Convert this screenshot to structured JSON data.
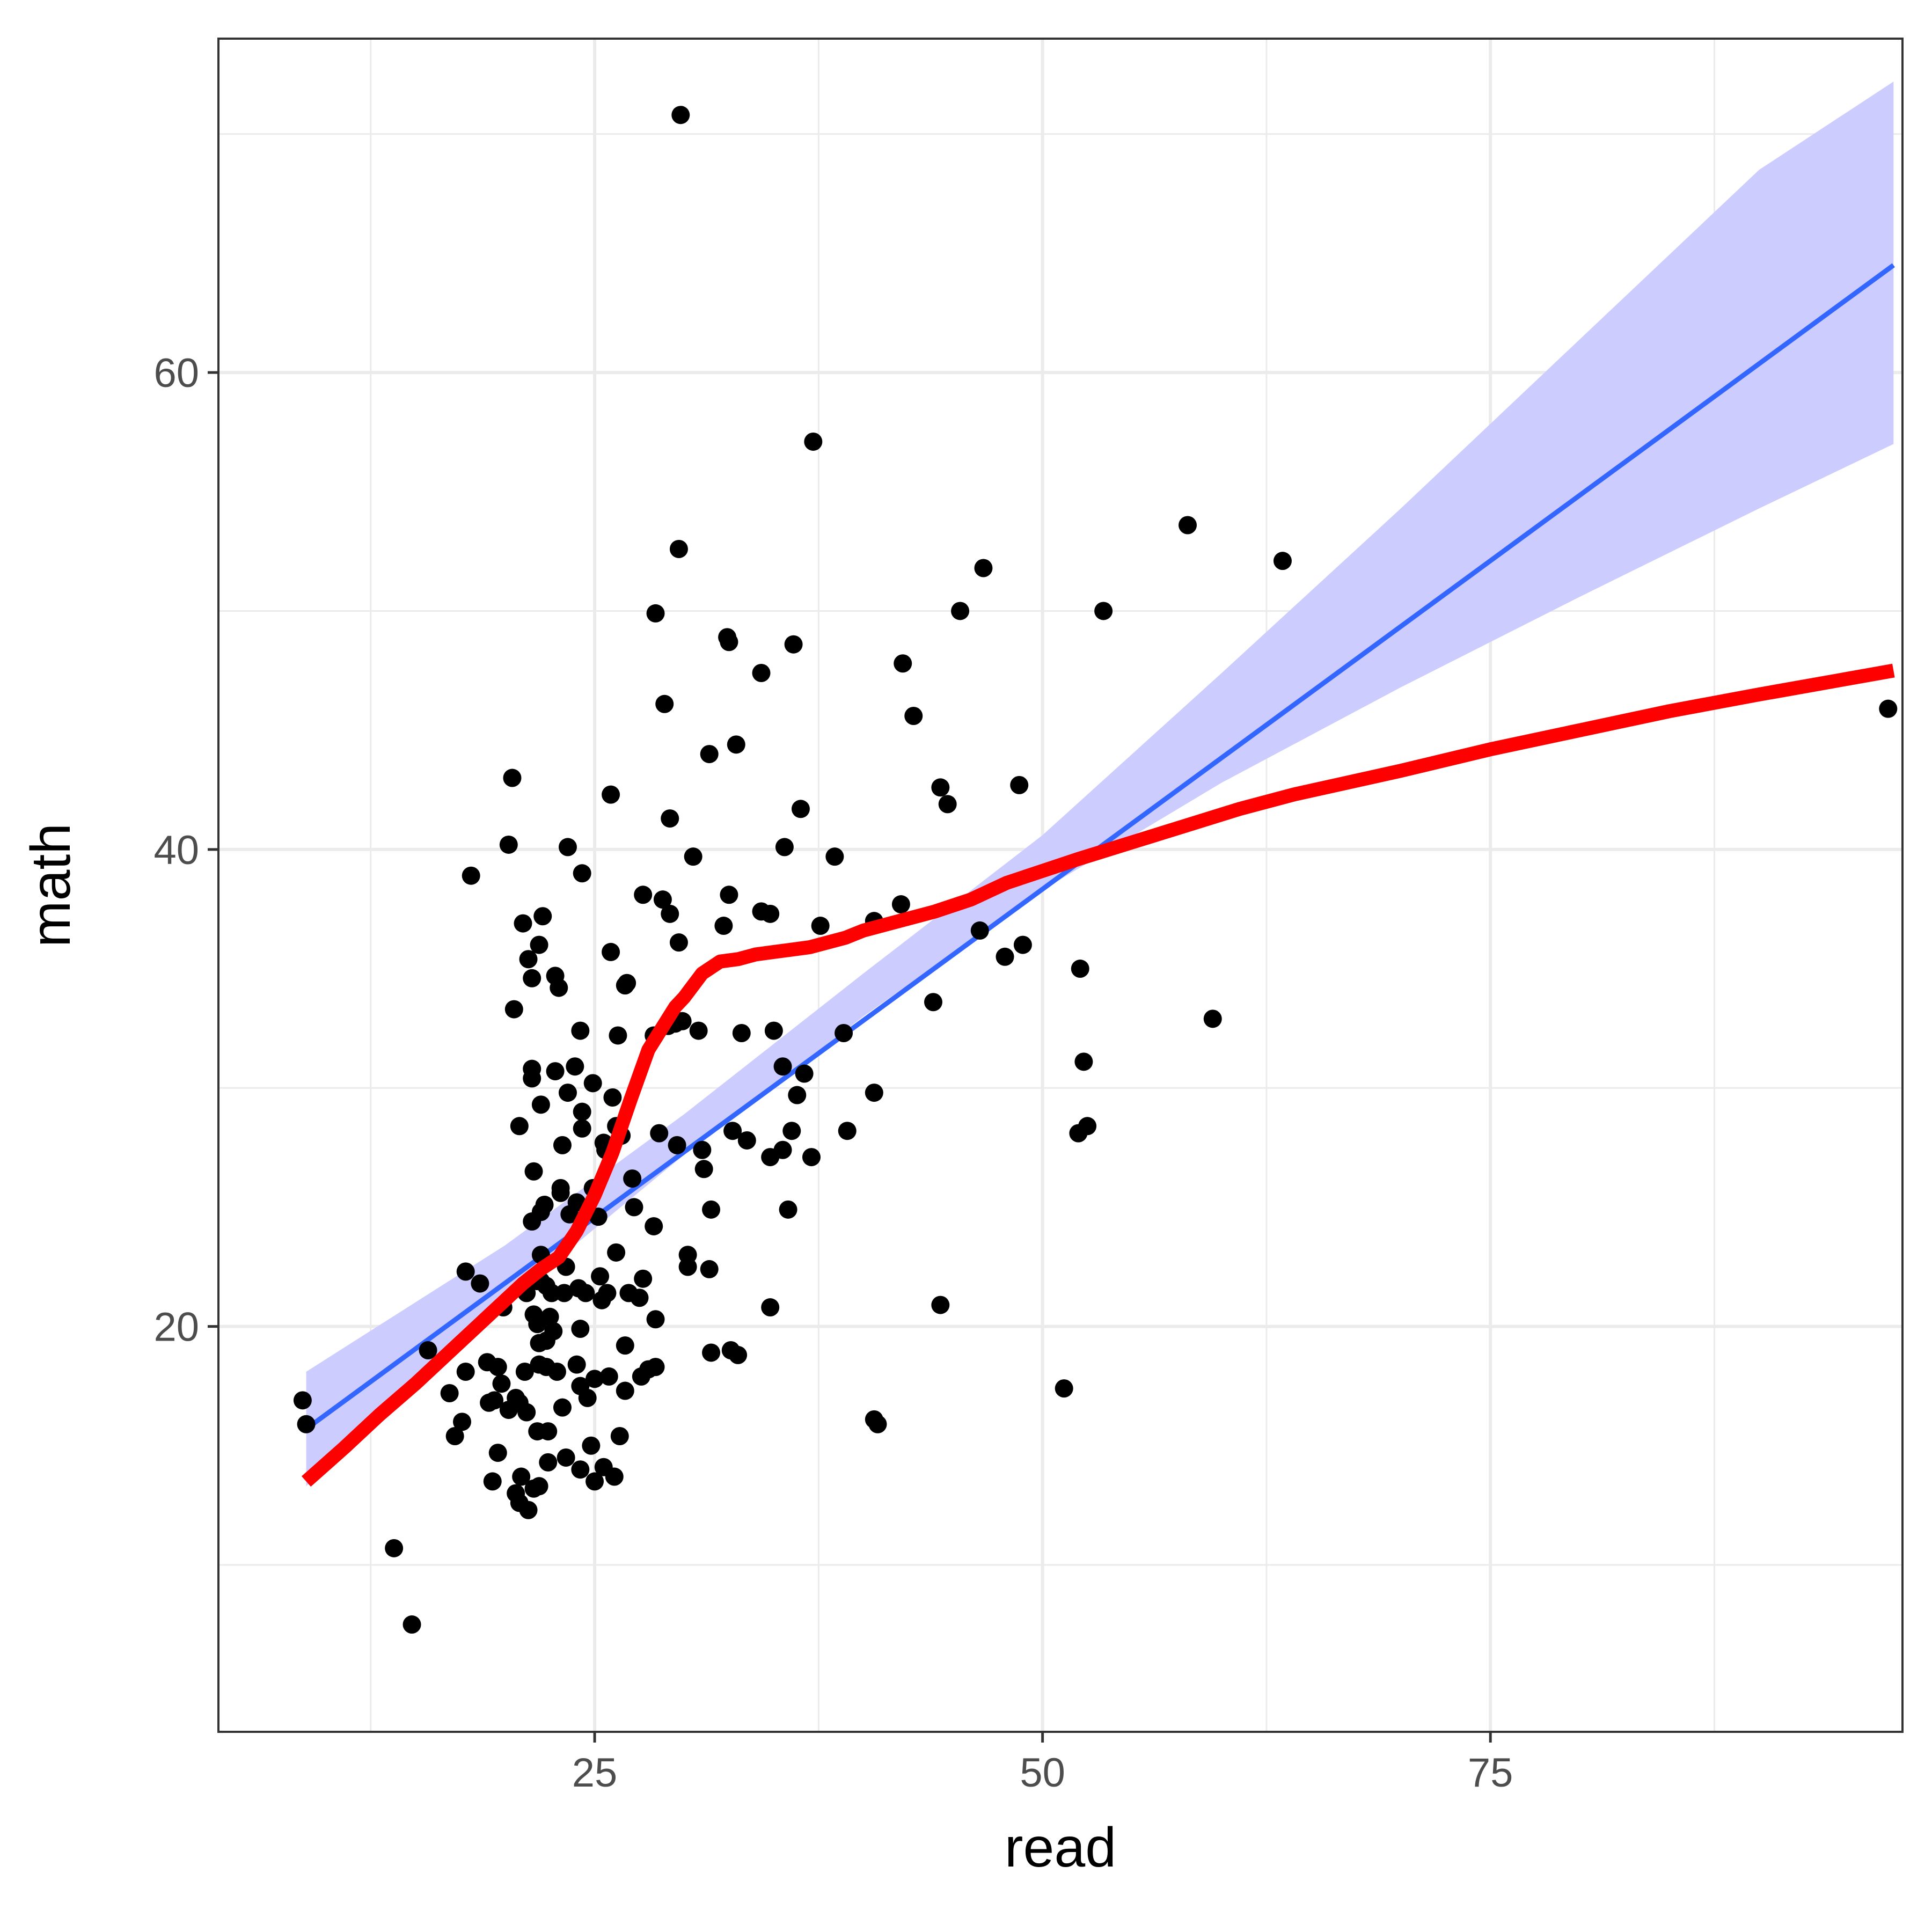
{
  "chart_data": {
    "type": "scatter",
    "title": "",
    "xlabel": "read",
    "ylabel": "math",
    "xlim": [
      4,
      98
    ],
    "ylim": [
      3,
      74
    ],
    "x_ticks": [
      25,
      50,
      75
    ],
    "x_tick_labels": [
      "25",
      "50",
      "75"
    ],
    "y_ticks": [
      20,
      40,
      60
    ],
    "y_tick_labels": [
      "20",
      "40",
      "60"
    ],
    "x_minor_ticks": [
      12.5,
      37.5,
      62.5,
      87.5
    ],
    "y_minor_ticks": [
      10,
      30,
      50,
      70
    ],
    "grid": true,
    "legend": "none",
    "colors": {
      "points": "#000000",
      "linear_fit": "#3366ff",
      "confidence_band": "#ccccff",
      "smooth_fit": "#ff0000",
      "grid": "#ebebeb",
      "panel_border": "#333333"
    },
    "points": [
      [
        8.7,
        16.9
      ],
      [
        8.9,
        15.9
      ],
      [
        13.8,
        10.7
      ],
      [
        14.8,
        7.5
      ],
      [
        15.7,
        19.0
      ],
      [
        16.9,
        17.2
      ],
      [
        17.2,
        15.4
      ],
      [
        17.6,
        16.0
      ],
      [
        17.8,
        18.1
      ],
      [
        17.8,
        22.3
      ],
      [
        18.1,
        38.9
      ],
      [
        18.6,
        21.8
      ],
      [
        19.0,
        18.5
      ],
      [
        19.1,
        16.8
      ],
      [
        19.3,
        13.5
      ],
      [
        19.4,
        16.9
      ],
      [
        19.6,
        14.7
      ],
      [
        19.6,
        18.3
      ],
      [
        19.8,
        17.6
      ],
      [
        19.9,
        20.8
      ],
      [
        20.2,
        40.2
      ],
      [
        20.2,
        16.5
      ],
      [
        20.4,
        43.0
      ],
      [
        20.5,
        33.3
      ],
      [
        20.6,
        17.0
      ],
      [
        20.6,
        13.0
      ],
      [
        20.8,
        28.4
      ],
      [
        20.8,
        16.8
      ],
      [
        20.8,
        12.6
      ],
      [
        20.9,
        13.7
      ],
      [
        21.0,
        36.9
      ],
      [
        21.1,
        18.1
      ],
      [
        21.2,
        21.4
      ],
      [
        21.2,
        16.4
      ],
      [
        21.3,
        12.3
      ],
      [
        21.3,
        35.4
      ],
      [
        21.5,
        34.6
      ],
      [
        21.5,
        30.8
      ],
      [
        21.5,
        30.4
      ],
      [
        21.5,
        24.4
      ],
      [
        21.6,
        26.5
      ],
      [
        21.6,
        20.5
      ],
      [
        21.6,
        13.2
      ],
      [
        21.8,
        21.9
      ],
      [
        21.8,
        20.1
      ],
      [
        21.8,
        15.6
      ],
      [
        21.9,
        36.0
      ],
      [
        21.9,
        19.3
      ],
      [
        21.9,
        18.4
      ],
      [
        21.9,
        13.3
      ],
      [
        22.0,
        29.3
      ],
      [
        22.0,
        24.8
      ],
      [
        22.0,
        23.0
      ],
      [
        22.0,
        21.9
      ],
      [
        22.1,
        37.2
      ],
      [
        22.2,
        25.1
      ],
      [
        22.3,
        21.7
      ],
      [
        22.3,
        19.4
      ],
      [
        22.3,
        18.3
      ],
      [
        22.4,
        15.6
      ],
      [
        22.4,
        14.3
      ],
      [
        22.5,
        20.4
      ],
      [
        22.6,
        21.4
      ],
      [
        22.7,
        19.8
      ],
      [
        22.8,
        34.7
      ],
      [
        22.8,
        30.7
      ],
      [
        22.9,
        18.1
      ],
      [
        23.0,
        34.2
      ],
      [
        23.1,
        25.8
      ],
      [
        23.1,
        25.6
      ],
      [
        23.2,
        27.6
      ],
      [
        23.2,
        16.6
      ],
      [
        23.3,
        21.4
      ],
      [
        23.4,
        22.5
      ],
      [
        23.4,
        14.5
      ],
      [
        23.5,
        29.8
      ],
      [
        23.5,
        40.1
      ],
      [
        23.6,
        24.7
      ],
      [
        23.9,
        30.9
      ],
      [
        24.0,
        25.2
      ],
      [
        24.0,
        18.4
      ],
      [
        24.1,
        21.6
      ],
      [
        24.2,
        32.4
      ],
      [
        24.2,
        19.9
      ],
      [
        24.2,
        17.5
      ],
      [
        24.2,
        14.0
      ],
      [
        24.3,
        39.0
      ],
      [
        24.3,
        29.0
      ],
      [
        24.3,
        28.3
      ],
      [
        24.5,
        21.4
      ],
      [
        24.6,
        17.0
      ],
      [
        24.8,
        15.0
      ],
      [
        24.9,
        30.2
      ],
      [
        24.9,
        25.8
      ],
      [
        25.0,
        17.8
      ],
      [
        25.0,
        13.5
      ],
      [
        25.2,
        24.6
      ],
      [
        25.3,
        22.1
      ],
      [
        25.4,
        21.1
      ],
      [
        25.5,
        14.1
      ],
      [
        25.5,
        27.7
      ],
      [
        25.6,
        27.4
      ],
      [
        25.7,
        21.4
      ],
      [
        25.8,
        17.9
      ],
      [
        25.9,
        35.7
      ],
      [
        25.9,
        42.3
      ],
      [
        26.0,
        29.6
      ],
      [
        26.1,
        13.7
      ],
      [
        26.2,
        28.4
      ],
      [
        26.2,
        23.1
      ],
      [
        26.3,
        32.2
      ],
      [
        26.4,
        15.4
      ],
      [
        26.5,
        28.0
      ],
      [
        26.7,
        19.2
      ],
      [
        26.7,
        17.3
      ],
      [
        26.7,
        34.3
      ],
      [
        26.8,
        34.4
      ],
      [
        26.9,
        21.4
      ],
      [
        27.1,
        26.2
      ],
      [
        27.2,
        25.0
      ],
      [
        27.5,
        21.2
      ],
      [
        27.6,
        17.9
      ],
      [
        27.7,
        22.0
      ],
      [
        27.7,
        38.1
      ],
      [
        28.0,
        18.2
      ],
      [
        28.3,
        24.2
      ],
      [
        28.4,
        20.3
      ],
      [
        28.4,
        18.3
      ],
      [
        28.3,
        32.2
      ],
      [
        28.4,
        49.9
      ],
      [
        28.6,
        28.1
      ],
      [
        28.8,
        37.9
      ],
      [
        28.9,
        46.1
      ],
      [
        29.1,
        32.6
      ],
      [
        29.2,
        37.3
      ],
      [
        29.2,
        41.3
      ],
      [
        29.5,
        32.7
      ],
      [
        29.6,
        27.6
      ],
      [
        29.7,
        36.1
      ],
      [
        29.7,
        52.6
      ],
      [
        29.8,
        70.8
      ],
      [
        29.9,
        32.8
      ],
      [
        30.2,
        22.5
      ],
      [
        30.2,
        23.0
      ],
      [
        30.5,
        39.7
      ],
      [
        30.8,
        32.4
      ],
      [
        31.0,
        27.4
      ],
      [
        31.1,
        26.6
      ],
      [
        31.4,
        44.0
      ],
      [
        31.4,
        22.4
      ],
      [
        31.5,
        24.9
      ],
      [
        31.5,
        18.9
      ],
      [
        32.2,
        36.8
      ],
      [
        32.4,
        48.9
      ],
      [
        32.5,
        38.1
      ],
      [
        32.5,
        48.7
      ],
      [
        32.6,
        19.0
      ],
      [
        32.7,
        28.2
      ],
      [
        32.9,
        44.4
      ],
      [
        33.0,
        18.8
      ],
      [
        33.2,
        32.3
      ],
      [
        33.5,
        27.8
      ],
      [
        34.3,
        37.4
      ],
      [
        34.3,
        47.4
      ],
      [
        34.8,
        37.3
      ],
      [
        34.8,
        27.1
      ],
      [
        34.8,
        20.8
      ],
      [
        35.0,
        32.4
      ],
      [
        35.5,
        30.9
      ],
      [
        35.5,
        27.4
      ],
      [
        35.6,
        40.1
      ],
      [
        35.8,
        24.9
      ],
      [
        36.0,
        28.2
      ],
      [
        36.1,
        48.6
      ],
      [
        36.3,
        29.7
      ],
      [
        36.5,
        41.7
      ],
      [
        36.7,
        30.6
      ],
      [
        37.1,
        27.1
      ],
      [
        37.2,
        57.1
      ],
      [
        37.6,
        36.8
      ],
      [
        38.4,
        39.7
      ],
      [
        38.9,
        32.3
      ],
      [
        39.1,
        28.2
      ],
      [
        40.6,
        37.0
      ],
      [
        40.6,
        29.8
      ],
      [
        40.6,
        16.1
      ],
      [
        40.8,
        15.9
      ],
      [
        42.1,
        37.7
      ],
      [
        42.2,
        47.8
      ],
      [
        42.8,
        45.6
      ],
      [
        43.9,
        33.6
      ],
      [
        44.3,
        42.6
      ],
      [
        44.3,
        20.9
      ],
      [
        44.7,
        41.9
      ],
      [
        45.4,
        50.0
      ],
      [
        46.5,
        36.6
      ],
      [
        46.7,
        51.8
      ],
      [
        47.9,
        35.5
      ],
      [
        48.7,
        42.7
      ],
      [
        48.9,
        36.0
      ],
      [
        51.2,
        17.4
      ],
      [
        52.0,
        28.1
      ],
      [
        52.1,
        35.0
      ],
      [
        52.3,
        31.1
      ],
      [
        52.5,
        28.4
      ],
      [
        53.4,
        50.0
      ],
      [
        58.1,
        53.6
      ],
      [
        59.5,
        32.9
      ],
      [
        63.4,
        52.1
      ],
      [
        97.2,
        45.9
      ]
    ],
    "linear_fit": {
      "x": [
        8.9,
        97.5
      ],
      "y": [
        15.7,
        64.5
      ]
    },
    "confidence_band": {
      "x": [
        8.9,
        20,
        30,
        40,
        50,
        60,
        70,
        80,
        90,
        97.5
      ],
      "lower": [
        13.3,
        21.0,
        27.2,
        33.0,
        38.3,
        42.8,
        46.8,
        50.6,
        54.3,
        57.0
      ],
      "upper": [
        18.1,
        23.4,
        28.9,
        34.8,
        40.6,
        47.4,
        54.3,
        61.4,
        68.5,
        72.2
      ]
    },
    "smooth_fit": {
      "x": [
        8.9,
        11,
        13,
        15,
        17,
        19,
        21,
        22,
        23,
        24,
        25,
        26,
        27,
        28,
        29,
        29.5,
        30,
        31,
        32,
        33,
        34,
        35,
        36,
        37,
        38,
        39,
        40,
        42,
        44,
        46,
        48,
        50,
        52,
        55,
        58,
        61,
        64,
        67,
        70,
        75,
        80,
        85,
        90,
        97.5
      ],
      "y": [
        13.5,
        14.9,
        16.3,
        17.6,
        19.0,
        20.4,
        21.8,
        22.4,
        22.9,
        24.0,
        25.5,
        27.3,
        29.5,
        31.6,
        32.8,
        33.4,
        33.8,
        34.8,
        35.3,
        35.4,
        35.6,
        35.7,
        35.8,
        35.9,
        36.1,
        36.3,
        36.6,
        37.0,
        37.4,
        37.9,
        38.6,
        39.1,
        39.6,
        40.3,
        41.0,
        41.7,
        42.3,
        42.8,
        43.3,
        44.2,
        45.0,
        45.8,
        46.5,
        47.5
      ]
    }
  }
}
